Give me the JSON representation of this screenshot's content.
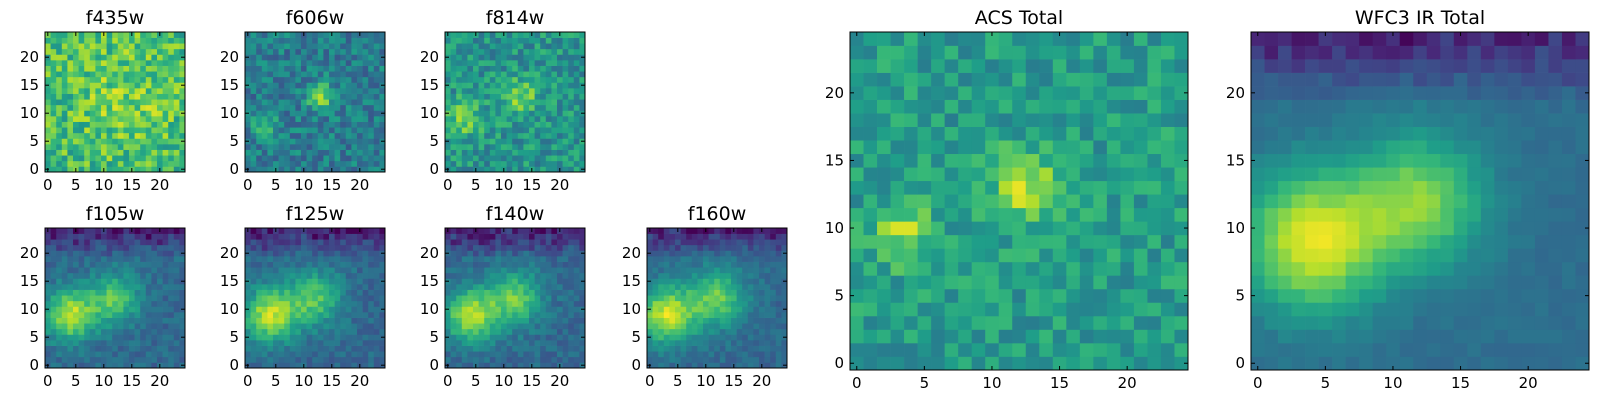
{
  "chart_data": [
    {
      "type": "heatmap",
      "title": "f435w",
      "grid_size": 25,
      "xlim": [
        -0.5,
        24.5
      ],
      "ylim": [
        -0.5,
        24.5
      ],
      "x_ticks": [
        0,
        5,
        10,
        15,
        20
      ],
      "y_ticks": [
        0,
        5,
        10,
        15,
        20
      ],
      "colormap": "viridis",
      "sources": [
        {
          "x": 14,
          "y": 13,
          "amp": 0.12,
          "sigma": 6
        }
      ],
      "base": 0.68,
      "noise": 0.38,
      "seed": 11
    },
    {
      "type": "heatmap",
      "title": "f606w",
      "grid_size": 25,
      "xlim": [
        -0.5,
        24.5
      ],
      "ylim": [
        -0.5,
        24.5
      ],
      "x_ticks": [
        0,
        5,
        10,
        15,
        20
      ],
      "y_ticks": [
        0,
        5,
        10,
        15,
        20
      ],
      "colormap": "viridis",
      "sources": [
        {
          "x": 13,
          "y": 13,
          "amp": 0.45,
          "sigma": 1.6
        },
        {
          "x": 3,
          "y": 8,
          "amp": 0.3,
          "sigma": 1.6
        }
      ],
      "base": 0.42,
      "noise": 0.3,
      "seed": 23
    },
    {
      "type": "heatmap",
      "title": "f814w",
      "grid_size": 25,
      "xlim": [
        -0.5,
        24.5
      ],
      "ylim": [
        -0.5,
        24.5
      ],
      "x_ticks": [
        0,
        5,
        10,
        15,
        20
      ],
      "y_ticks": [
        0,
        5,
        10,
        15,
        20
      ],
      "colormap": "viridis",
      "sources": [
        {
          "x": 13,
          "y": 13,
          "amp": 0.28,
          "sigma": 2.2
        },
        {
          "x": 3,
          "y": 9,
          "amp": 0.28,
          "sigma": 2.2
        }
      ],
      "base": 0.52,
      "noise": 0.32,
      "seed": 37
    },
    {
      "type": "heatmap",
      "title": "f105w",
      "grid_size": 25,
      "xlim": [
        -0.5,
        24.5
      ],
      "ylim": [
        -0.5,
        24.5
      ],
      "x_ticks": [
        0,
        5,
        10,
        15,
        20
      ],
      "y_ticks": [
        0,
        5,
        10,
        15,
        20
      ],
      "colormap": "viridis",
      "sources": [
        {
          "x": 4,
          "y": 9,
          "amp": 0.55,
          "sigma": 3.2
        },
        {
          "x": 12,
          "y": 12,
          "amp": 0.4,
          "sigma": 3.2
        }
      ],
      "base": 0.34,
      "noise": 0.16,
      "darkTop": true,
      "seed": 41
    },
    {
      "type": "heatmap",
      "title": "f125w",
      "grid_size": 25,
      "xlim": [
        -0.5,
        24.5
      ],
      "ylim": [
        -0.5,
        24.5
      ],
      "x_ticks": [
        0,
        5,
        10,
        15,
        20
      ],
      "y_ticks": [
        0,
        5,
        10,
        15,
        20
      ],
      "colormap": "viridis",
      "sources": [
        {
          "x": 4,
          "y": 9,
          "amp": 0.55,
          "sigma": 3.4
        },
        {
          "x": 12,
          "y": 12,
          "amp": 0.38,
          "sigma": 3.4
        }
      ],
      "base": 0.34,
      "noise": 0.16,
      "darkTop": true,
      "seed": 53
    },
    {
      "type": "heatmap",
      "title": "f140w",
      "grid_size": 25,
      "xlim": [
        -0.5,
        24.5
      ],
      "ylim": [
        -0.5,
        24.5
      ],
      "x_ticks": [
        0,
        5,
        10,
        15,
        20
      ],
      "y_ticks": [
        0,
        5,
        10,
        15,
        20
      ],
      "colormap": "viridis",
      "sources": [
        {
          "x": 4,
          "y": 9,
          "amp": 0.52,
          "sigma": 3.4
        },
        {
          "x": 12,
          "y": 12,
          "amp": 0.42,
          "sigma": 3.4
        }
      ],
      "base": 0.34,
      "noise": 0.16,
      "darkTop": true,
      "seed": 67
    },
    {
      "type": "heatmap",
      "title": "f160w",
      "grid_size": 25,
      "xlim": [
        -0.5,
        24.5
      ],
      "ylim": [
        -0.5,
        24.5
      ],
      "x_ticks": [
        0,
        5,
        10,
        15,
        20
      ],
      "y_ticks": [
        0,
        5,
        10,
        15,
        20
      ],
      "colormap": "viridis",
      "sources": [
        {
          "x": 3,
          "y": 9,
          "amp": 0.58,
          "sigma": 3.6
        },
        {
          "x": 12,
          "y": 12,
          "amp": 0.42,
          "sigma": 3.6
        }
      ],
      "base": 0.34,
      "noise": 0.14,
      "darkTop": true,
      "seed": 79
    },
    {
      "type": "heatmap",
      "title": "ACS Total",
      "grid_size": 25,
      "xlim": [
        -0.5,
        24.5
      ],
      "ylim": [
        -0.5,
        24.5
      ],
      "x_ticks": [
        0,
        5,
        10,
        15,
        20
      ],
      "y_ticks": [
        0,
        5,
        10,
        15,
        20
      ],
      "colormap": "viridis",
      "sources": [
        {
          "x": 12.5,
          "y": 13,
          "amp": 0.35,
          "sigma": 1.8
        },
        {
          "x": 3.5,
          "y": 9.5,
          "amp": 0.3,
          "sigma": 1.6
        }
      ],
      "base": 0.55,
      "noise": 0.26,
      "seed": 97
    },
    {
      "type": "heatmap",
      "title": "WFC3 IR Total",
      "grid_size": 25,
      "xlim": [
        -0.5,
        24.5
      ],
      "ylim": [
        -0.5,
        24.5
      ],
      "x_ticks": [
        0,
        5,
        10,
        15,
        20
      ],
      "y_ticks": [
        0,
        5,
        10,
        15,
        20
      ],
      "colormap": "viridis",
      "sources": [
        {
          "x": 4,
          "y": 9,
          "amp": 0.6,
          "sigma": 3.6
        },
        {
          "x": 12,
          "y": 12,
          "amp": 0.45,
          "sigma": 3.4
        }
      ],
      "base": 0.36,
      "noise": 0.06,
      "darkTop": true,
      "seed": 101
    }
  ]
}
